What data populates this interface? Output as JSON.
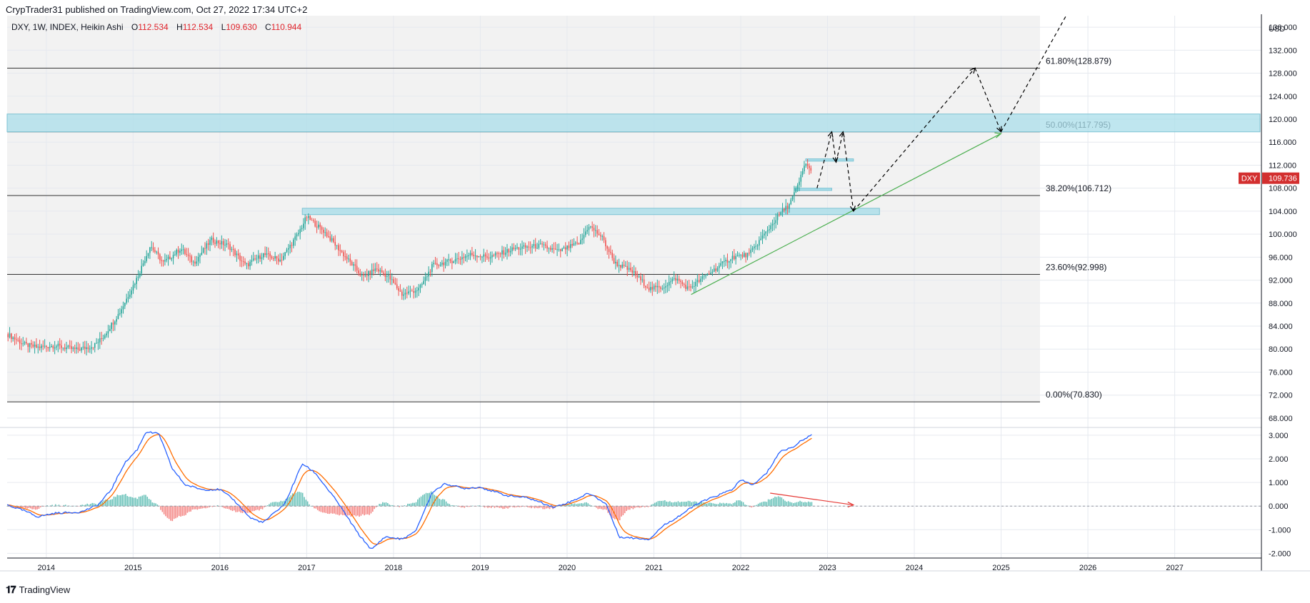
{
  "header": {
    "publisher": "CrypTrader31 published on TradingView.com, Oct 27, 2022 17:34 UTC+2"
  },
  "footer": {
    "brand": "TradingView"
  },
  "colors": {
    "up": "#26a69a",
    "down": "#ef5350",
    "macd": "#2962ff",
    "signal": "#ff6d00",
    "zone": "#a9dde9",
    "trend": "#4caf50",
    "divergence": "#e53935",
    "badge": "#d32f2f"
  },
  "chart_data": [
    {
      "type": "candlestick",
      "name": "DXY weekly Heikin Ashi",
      "legend": {
        "symbol": "DXY, 1W, INDEX, Heikin Ashi",
        "o_label": "O",
        "o": "112.534",
        "h_label": "H",
        "h": "112.534",
        "l_label": "L",
        "l": "109.630",
        "c_label": "C",
        "c": "110.944"
      },
      "y_unit": "USD",
      "ylim": [
        66.5,
        138
      ],
      "yticks": [
        68,
        72,
        76,
        80,
        84,
        88,
        92,
        96,
        100,
        104,
        108,
        112,
        116,
        120,
        124,
        128,
        132,
        136
      ],
      "xticks": [
        "2014",
        "2015",
        "2016",
        "2017",
        "2018",
        "2019",
        "2020",
        "2021",
        "2022",
        "2023",
        "2024",
        "2025",
        "2026",
        "2027"
      ],
      "xlim": [
        2013.55,
        2028.0
      ],
      "last_price_label": "DXY",
      "last_price": "109.736",
      "last_price_value": 109.736,
      "price_anchors": [
        [
          2013.55,
          82.6
        ],
        [
          2013.75,
          80.8
        ],
        [
          2013.9,
          80.3
        ],
        [
          2014.1,
          80.6
        ],
        [
          2014.35,
          79.9
        ],
        [
          2014.55,
          80.6
        ],
        [
          2014.65,
          82.0
        ],
        [
          2014.85,
          86.5
        ],
        [
          2015.05,
          92.5
        ],
        [
          2015.2,
          98.0
        ],
        [
          2015.35,
          95.0
        ],
        [
          2015.55,
          97.5
        ],
        [
          2015.7,
          95.0
        ],
        [
          2015.9,
          99.0
        ],
        [
          2016.1,
          98.0
        ],
        [
          2016.3,
          94.5
        ],
        [
          2016.5,
          96.5
        ],
        [
          2016.7,
          95.5
        ],
        [
          2016.9,
          100.0
        ],
        [
          2017.0,
          103.0
        ],
        [
          2017.2,
          100.5
        ],
        [
          2017.45,
          96.0
        ],
        [
          2017.65,
          92.5
        ],
        [
          2017.8,
          94.0
        ],
        [
          2017.95,
          92.5
        ],
        [
          2018.1,
          89.5
        ],
        [
          2018.3,
          90.5
        ],
        [
          2018.45,
          94.5
        ],
        [
          2018.7,
          95.5
        ],
        [
          2018.9,
          96.5
        ],
        [
          2019.1,
          96.0
        ],
        [
          2019.4,
          97.5
        ],
        [
          2019.7,
          98.0
        ],
        [
          2019.9,
          97.0
        ],
        [
          2020.15,
          98.5
        ],
        [
          2020.25,
          101.5
        ],
        [
          2020.4,
          99.5
        ],
        [
          2020.55,
          95.0
        ],
        [
          2020.75,
          93.5
        ],
        [
          2020.95,
          90.5
        ],
        [
          2021.1,
          90.8
        ],
        [
          2021.25,
          92.3
        ],
        [
          2021.4,
          90.5
        ],
        [
          2021.6,
          92.8
        ],
        [
          2021.9,
          96.0
        ],
        [
          2022.1,
          96.5
        ],
        [
          2022.25,
          99.5
        ],
        [
          2022.45,
          103.5
        ],
        [
          2022.55,
          105.0
        ],
        [
          2022.65,
          108.0
        ],
        [
          2022.75,
          112.5
        ],
        [
          2022.82,
          110.5
        ]
      ],
      "fib_levels": [
        {
          "label": "0.00%(70.830)",
          "value": 70.83
        },
        {
          "label": "23.60%(92.998)",
          "value": 92.998
        },
        {
          "label": "38.20%(106.712)",
          "value": 106.712
        },
        {
          "label": "50.00%(117.795)",
          "value": 117.795
        },
        {
          "label": "61.80%(128.879)",
          "value": 128.879
        }
      ],
      "zone": {
        "from": 117.8,
        "to": 120.9
      },
      "support_box": {
        "x_start": 2016.95,
        "x_end": 2023.6,
        "low": 103.4,
        "high": 104.5
      },
      "small_boxes": [
        {
          "x_start": 2022.62,
          "x_end": 2023.05,
          "low": 107.6,
          "high": 108.0
        },
        {
          "x_start": 2022.75,
          "x_end": 2023.3,
          "low": 112.7,
          "high": 113.1
        }
      ],
      "trendline": [
        [
          2021.43,
          89.5
        ],
        [
          2025.0,
          117.5
        ]
      ],
      "projection_path": [
        [
          2022.88,
          108.0
        ],
        [
          2023.05,
          117.8
        ],
        [
          2023.1,
          112.5
        ],
        [
          2023.18,
          117.8
        ],
        [
          2023.3,
          104.0
        ],
        [
          2024.7,
          128.9
        ],
        [
          2025.0,
          117.8
        ],
        [
          2025.75,
          138.0
        ]
      ],
      "divergence_x": [
        2022.34,
        2022.82
      ]
    },
    {
      "type": "line",
      "name": "MACD",
      "ylim": [
        -2.2,
        3.3
      ],
      "yticks": [
        "3.000",
        "2.000",
        "1.000",
        "0.000",
        "-1.000",
        "-2.000"
      ],
      "ytick_values": [
        3,
        2,
        1,
        0,
        -1,
        -2
      ],
      "macd_anchors": [
        [
          2013.55,
          0.05
        ],
        [
          2013.75,
          -0.2
        ],
        [
          2013.9,
          -0.45
        ],
        [
          2014.1,
          -0.3
        ],
        [
          2014.4,
          -0.25
        ],
        [
          2014.6,
          0.05
        ],
        [
          2014.75,
          0.7
        ],
        [
          2014.9,
          1.8
        ],
        [
          2015.05,
          2.4
        ],
        [
          2015.15,
          3.15
        ],
        [
          2015.3,
          3.05
        ],
        [
          2015.45,
          1.6
        ],
        [
          2015.6,
          0.9
        ],
        [
          2015.8,
          0.7
        ],
        [
          2016.0,
          0.7
        ],
        [
          2016.15,
          0.3
        ],
        [
          2016.35,
          -0.5
        ],
        [
          2016.5,
          -0.7
        ],
        [
          2016.75,
          0.1
        ],
        [
          2016.95,
          1.8
        ],
        [
          2017.1,
          1.4
        ],
        [
          2017.35,
          0.2
        ],
        [
          2017.6,
          -1.2
        ],
        [
          2017.75,
          -1.85
        ],
        [
          2017.9,
          -1.3
        ],
        [
          2018.1,
          -1.4
        ],
        [
          2018.25,
          -1.1
        ],
        [
          2018.45,
          0.6
        ],
        [
          2018.6,
          0.95
        ],
        [
          2018.8,
          0.75
        ],
        [
          2019.0,
          0.8
        ],
        [
          2019.3,
          0.45
        ],
        [
          2019.55,
          0.35
        ],
        [
          2019.85,
          -0.05
        ],
        [
          2020.05,
          0.2
        ],
        [
          2020.25,
          0.55
        ],
        [
          2020.45,
          0.1
        ],
        [
          2020.6,
          -1.3
        ],
        [
          2020.75,
          -1.35
        ],
        [
          2020.95,
          -1.4
        ],
        [
          2021.1,
          -0.85
        ],
        [
          2021.3,
          -0.4
        ],
        [
          2021.5,
          0.1
        ],
        [
          2021.7,
          0.4
        ],
        [
          2021.9,
          0.7
        ],
        [
          2022.0,
          1.1
        ],
        [
          2022.15,
          0.9
        ],
        [
          2022.3,
          1.4
        ],
        [
          2022.45,
          2.3
        ],
        [
          2022.6,
          2.5
        ],
        [
          2022.75,
          2.9
        ],
        [
          2022.82,
          3.0
        ]
      ]
    }
  ]
}
